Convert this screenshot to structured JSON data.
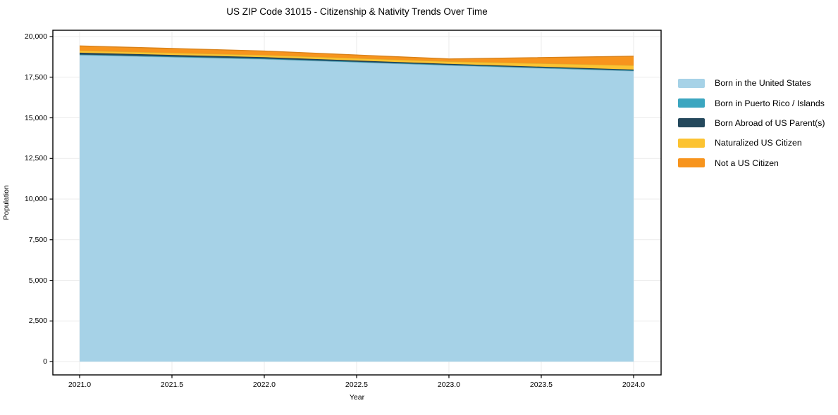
{
  "title": "US ZIP Code 31015 - Citizenship & Nativity Trends Over Time",
  "chart_data": {
    "type": "area",
    "stacked": true,
    "title": "US ZIP Code 31015 - Citizenship & Nativity Trends Over Time",
    "xlabel": "Year",
    "ylabel": "Population",
    "x": [
      2021,
      2022,
      2023,
      2024
    ],
    "series": [
      {
        "name": "Born in the United States",
        "color": "#a6d2e7",
        "values": [
          18866,
          18612,
          18232,
          17884
        ]
      },
      {
        "name": "Born in Puerto Rico / Islands",
        "color": "#3ba6c0",
        "values": [
          30,
          34,
          28,
          30
        ]
      },
      {
        "name": "Born Abroad of US Parent(s)",
        "color": "#24485c",
        "values": [
          112,
          88,
          62,
          55
        ]
      },
      {
        "name": "Naturalized US Citizen",
        "color": "#fcc332",
        "values": [
          134,
          131,
          152,
          262
        ]
      },
      {
        "name": "Not a US Citizen",
        "color": "#f7941d",
        "values": [
          283,
          242,
          148,
          560
        ]
      }
    ],
    "totals": [
      19425,
      19107,
      18622,
      18791
    ],
    "xlim": [
      2020.855,
      2024.149
    ],
    "ylim": [
      -820,
      20390
    ],
    "xticks": {
      "values": [
        2021.0,
        2021.5,
        2022.0,
        2022.5,
        2023.0,
        2023.5,
        2024.0
      ],
      "labels": [
        "2021.0",
        "2021.5",
        "2022.0",
        "2022.5",
        "2023.0",
        "2023.5",
        "2024.0"
      ]
    },
    "yticks": {
      "values": [
        0,
        2500,
        5000,
        7500,
        10000,
        12500,
        15000,
        17500,
        20000
      ],
      "labels": [
        "0",
        "2,500",
        "5,000",
        "7,500",
        "10,000",
        "12,500",
        "15,000",
        "17,500",
        "20,000"
      ]
    },
    "grid": true,
    "legend_position": "right-outside",
    "colors": {
      "grid": "#ebebeb",
      "frame": "#000000",
      "background": "#ffffff",
      "text": "#000000"
    }
  }
}
